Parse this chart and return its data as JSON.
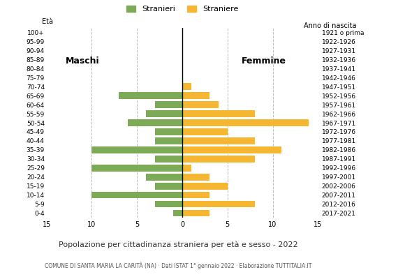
{
  "age_groups": [
    "0-4",
    "5-9",
    "10-14",
    "15-19",
    "20-24",
    "25-29",
    "30-34",
    "35-39",
    "40-44",
    "45-49",
    "50-54",
    "55-59",
    "60-64",
    "65-69",
    "70-74",
    "75-79",
    "80-84",
    "85-89",
    "90-94",
    "95-99",
    "100+"
  ],
  "birth_years": [
    "2017-2021",
    "2012-2016",
    "2007-2011",
    "2002-2006",
    "1997-2001",
    "1992-1996",
    "1987-1991",
    "1982-1986",
    "1977-1981",
    "1972-1976",
    "1967-1971",
    "1962-1966",
    "1957-1961",
    "1952-1956",
    "1947-1951",
    "1942-1946",
    "1937-1941",
    "1932-1936",
    "1927-1931",
    "1922-1926",
    "1921 o prima"
  ],
  "males": [
    1,
    3,
    10,
    3,
    4,
    10,
    3,
    10,
    3,
    3,
    6,
    4,
    3,
    7,
    0,
    0,
    0,
    0,
    0,
    0,
    0
  ],
  "females": [
    3,
    8,
    3,
    5,
    3,
    1,
    8,
    11,
    8,
    5,
    14,
    8,
    4,
    3,
    1,
    0,
    0,
    0,
    0,
    0,
    0
  ],
  "male_color": "#7daa57",
  "female_color": "#f5b731",
  "background_color": "#ffffff",
  "grid_color": "#bbbbbb",
  "title": "Popolazione per cittadinanza straniera per età e sesso - 2022",
  "subtitle": "COMUNE DI SANTA MARIA LA CARITÀ (NA) · Dati ISTAT 1° gennaio 2022 · Elaborazione TUTTITALIA.IT",
  "label_eta": "Età",
  "label_anno": "Anno di nascita",
  "label_maschi": "Maschi",
  "label_femmine": "Femmine",
  "legend_stranieri": "Stranieri",
  "legend_straniere": "Straniere",
  "xlim": 15,
  "xticklabels": [
    "15",
    "10",
    "5",
    "0",
    "5",
    "10",
    "15"
  ]
}
